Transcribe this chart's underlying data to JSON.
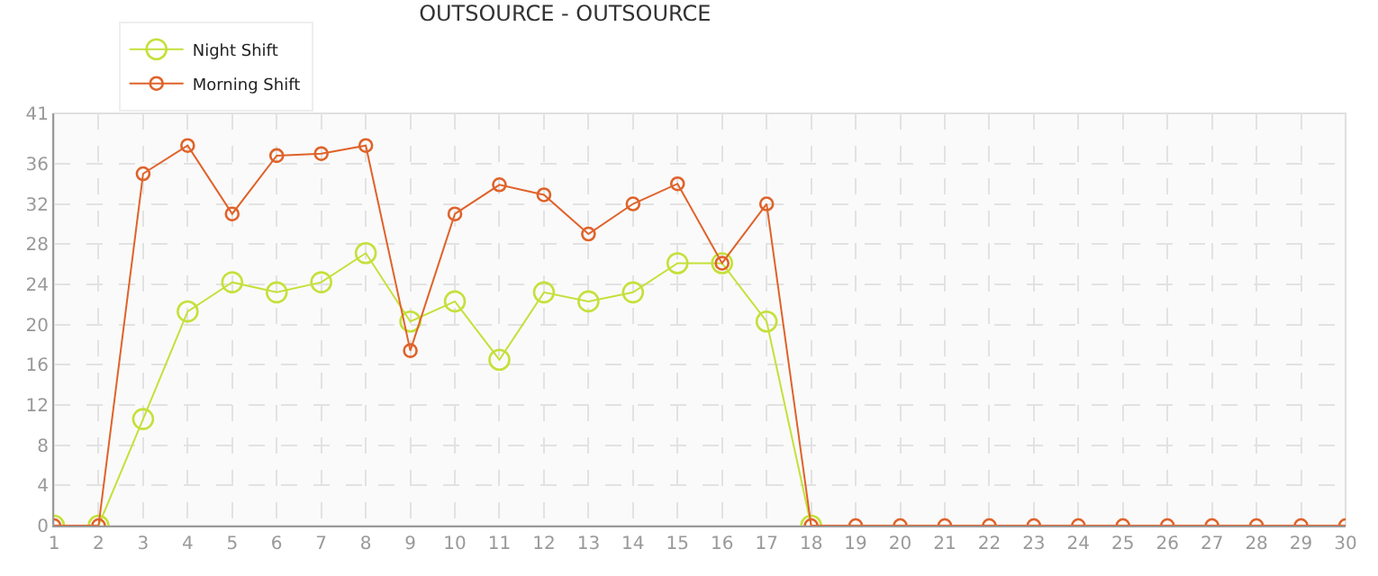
{
  "chart_data": {
    "type": "line",
    "title": "OUTSOURCE - OUTSOURCE",
    "x": [
      1,
      2,
      3,
      4,
      5,
      6,
      7,
      8,
      9,
      10,
      11,
      12,
      13,
      14,
      15,
      16,
      17,
      18,
      19,
      20,
      21,
      22,
      23,
      24,
      25,
      26,
      27,
      28,
      29,
      30
    ],
    "series": [
      {
        "name": "Night Shift",
        "color": "#c5e03a",
        "values": [
          0,
          0,
          10.6,
          21.3,
          24.2,
          23.2,
          24.2,
          27.1,
          20.3,
          22.3,
          16.5,
          23.2,
          22.3,
          23.2,
          26.1,
          26.1,
          20.3,
          0,
          null,
          null,
          null,
          null,
          null,
          null,
          null,
          null,
          null,
          null,
          null,
          null
        ]
      },
      {
        "name": "Morning Shift",
        "color": "#e0622a",
        "values": [
          0,
          0,
          35,
          37.8,
          31,
          36.8,
          37,
          37.8,
          17.4,
          31,
          33.9,
          32.9,
          29,
          32,
          34,
          26.1,
          32,
          0,
          0,
          0,
          0,
          0,
          0,
          0,
          0,
          0,
          0,
          0,
          0,
          0
        ]
      }
    ],
    "xlim": [
      1,
      30
    ],
    "xticks": [
      1,
      2,
      3,
      4,
      5,
      6,
      7,
      8,
      9,
      10,
      11,
      12,
      13,
      14,
      15,
      16,
      17,
      18,
      19,
      20,
      21,
      22,
      23,
      24,
      25,
      26,
      27,
      28,
      29,
      30
    ],
    "ylim": [
      0,
      41
    ],
    "yticks": [
      0,
      4,
      8,
      12,
      16,
      20,
      24,
      28,
      32,
      36,
      41
    ],
    "grid": true,
    "legend": "top left",
    "marker": "circle",
    "line_style": "solid"
  }
}
